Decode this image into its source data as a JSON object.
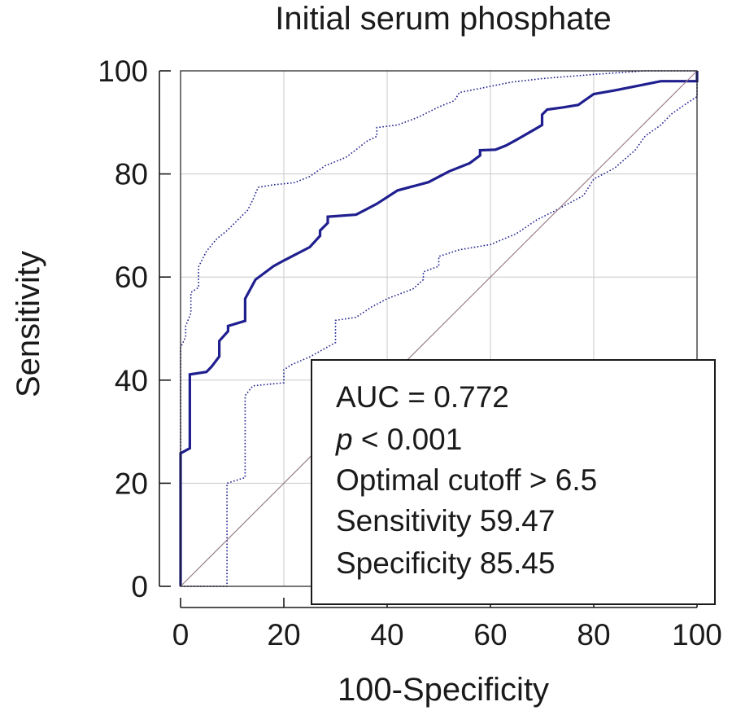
{
  "chart_data": {
    "type": "line",
    "title": "Initial serum phosphate",
    "xlabel": "100-Specificity",
    "ylabel": "Sensitivity",
    "xlim": [
      0,
      100
    ],
    "ylim": [
      0,
      100
    ],
    "xticks": [
      0,
      20,
      40,
      60,
      80,
      100
    ],
    "yticks": [
      0,
      20,
      40,
      60,
      80,
      100
    ],
    "grid": true,
    "colors": {
      "roc": "#1f1f8f",
      "ci": "#1f1f8f",
      "diagonal": "#9b7e8a",
      "grid": "#c8c8c8",
      "axis": "#1a1a1a"
    },
    "series": [
      {
        "style": "solid",
        "points": [
          [
            0,
            0
          ],
          [
            0,
            25.8
          ],
          [
            1.8,
            26.8
          ],
          [
            1.8,
            41.1
          ],
          [
            5,
            41.6
          ],
          [
            6,
            42.6
          ],
          [
            7.5,
            44.6
          ],
          [
            7.5,
            47.6
          ],
          [
            9.2,
            49.5
          ],
          [
            9.2,
            50.5
          ],
          [
            12.5,
            51.5
          ],
          [
            12.5,
            55.8
          ],
          [
            14.5,
            59.5
          ],
          [
            18,
            62.1
          ],
          [
            20,
            63.2
          ],
          [
            25,
            65.8
          ],
          [
            27,
            68
          ],
          [
            27,
            69
          ],
          [
            28.5,
            70.5
          ],
          [
            28.5,
            71.7
          ],
          [
            34,
            72.1
          ],
          [
            38,
            74.2
          ],
          [
            42,
            76.8
          ],
          [
            48,
            78.4
          ],
          [
            52,
            80.5
          ],
          [
            56,
            82.1
          ],
          [
            58,
            83.6
          ],
          [
            58,
            84.6
          ],
          [
            61,
            84.7
          ],
          [
            63,
            85.5
          ],
          [
            65,
            86.6
          ],
          [
            69,
            88.9
          ],
          [
            70,
            89.5
          ],
          [
            70,
            91.5
          ],
          [
            71,
            92.5
          ],
          [
            74,
            92.9
          ],
          [
            77,
            93.4
          ],
          [
            80,
            95.5
          ],
          [
            84,
            96.2
          ],
          [
            87,
            96.8
          ],
          [
            93,
            98
          ],
          [
            100,
            98
          ],
          [
            100,
            100
          ]
        ]
      },
      {
        "style": "dotted",
        "points": [
          [
            0,
            0
          ],
          [
            0,
            46.3
          ],
          [
            1,
            48.4
          ],
          [
            1,
            50.5
          ],
          [
            2,
            53
          ],
          [
            2,
            57
          ],
          [
            3.5,
            58
          ],
          [
            3.5,
            62
          ],
          [
            5,
            65
          ],
          [
            7,
            67.4
          ],
          [
            9,
            69
          ],
          [
            11,
            71
          ],
          [
            13,
            73
          ],
          [
            14,
            75
          ],
          [
            15,
            77.4
          ],
          [
            18,
            77.9
          ],
          [
            22,
            78.3
          ],
          [
            25,
            79.5
          ],
          [
            28,
            81.6
          ],
          [
            32,
            83.2
          ],
          [
            34,
            84.7
          ],
          [
            36,
            86.3
          ],
          [
            38,
            87.3
          ],
          [
            38,
            89
          ],
          [
            42,
            89.5
          ],
          [
            46,
            91
          ],
          [
            50,
            93
          ],
          [
            53,
            94.2
          ],
          [
            54,
            95.8
          ],
          [
            59,
            96.8
          ],
          [
            64,
            97.8
          ],
          [
            70,
            98.5
          ],
          [
            80,
            99.3
          ],
          [
            90,
            100
          ],
          [
            100,
            100
          ]
        ]
      },
      {
        "style": "dotted",
        "points": [
          [
            0,
            0
          ],
          [
            9,
            0
          ],
          [
            9,
            20
          ],
          [
            12.5,
            21.1
          ],
          [
            12.5,
            29
          ],
          [
            12.5,
            37
          ],
          [
            14,
            38.9
          ],
          [
            20,
            39.5
          ],
          [
            20,
            42
          ],
          [
            21.5,
            43
          ],
          [
            25,
            44.5
          ],
          [
            30,
            47.3
          ],
          [
            30,
            51.6
          ],
          [
            34,
            52.2
          ],
          [
            37,
            54.2
          ],
          [
            40,
            55.8
          ],
          [
            45,
            57.7
          ],
          [
            47,
            59.5
          ],
          [
            47,
            61
          ],
          [
            50,
            62.1
          ],
          [
            50,
            64
          ],
          [
            54,
            65.3
          ],
          [
            60,
            66.3
          ],
          [
            65,
            68.4
          ],
          [
            69,
            71.1
          ],
          [
            72,
            72.6
          ],
          [
            75,
            74.2
          ],
          [
            78,
            75.8
          ],
          [
            80,
            79
          ],
          [
            84,
            81.1
          ],
          [
            88,
            84.6
          ],
          [
            90,
            87.4
          ],
          [
            93,
            89.5
          ],
          [
            95,
            91.6
          ],
          [
            98,
            93.7
          ],
          [
            100,
            95
          ],
          [
            100,
            100
          ]
        ]
      },
      {
        "style": "diagonal",
        "points": [
          [
            0,
            0
          ],
          [
            100,
            100
          ]
        ]
      }
    ],
    "annotations": {
      "auc": "AUC = 0.772",
      "p_symbol": "p",
      "p_rest": " < 0.001",
      "cutoff": "Optimal cutoff > 6.5",
      "sensitivity": "Sensitivity 59.47",
      "specificity": "Specificity 85.45"
    }
  }
}
